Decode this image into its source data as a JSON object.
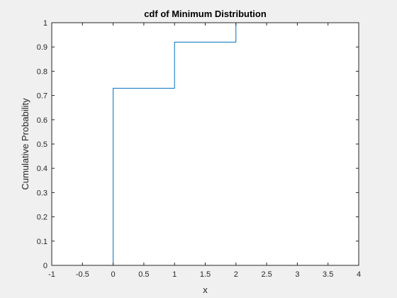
{
  "chart_data": {
    "type": "line",
    "title": "cdf of Minimum Distribution",
    "xlabel": "x",
    "ylabel": "Cumulative Probability",
    "xlim": [
      -1,
      4
    ],
    "ylim": [
      0,
      1
    ],
    "xticks": [
      -1,
      -0.5,
      0,
      0.5,
      1,
      1.5,
      2,
      2.5,
      3,
      3.5,
      4
    ],
    "xtick_labels": [
      "-1",
      "-0.5",
      "0",
      "0.5",
      "1",
      "1.5",
      "2",
      "2.5",
      "3",
      "3.5",
      "4"
    ],
    "yticks": [
      0,
      0.1,
      0.2,
      0.3,
      0.4,
      0.5,
      0.6,
      0.7,
      0.8,
      0.9,
      1
    ],
    "ytick_labels": [
      "0",
      "0.1",
      "0.2",
      "0.3",
      "0.4",
      "0.5",
      "0.6",
      "0.7",
      "0.8",
      "0.9",
      "1"
    ],
    "grid": false,
    "series": [
      {
        "style": "stairs",
        "color": "#0072bd",
        "x": [
          -1,
          0,
          0,
          1,
          1,
          2,
          2,
          4
        ],
        "y": [
          0,
          0,
          0.73,
          0.73,
          0.92,
          0.92,
          1,
          1
        ]
      }
    ]
  }
}
